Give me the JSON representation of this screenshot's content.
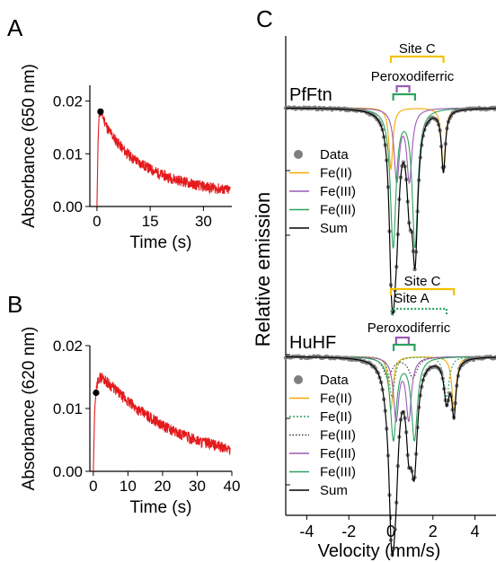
{
  "colors": {
    "trace": "#e41a1c",
    "feII": "#f2a900",
    "feIII_purple": "#9b59b6",
    "feIII_green": "#2ca25f",
    "sum": "#000000",
    "data": "#7f7f7f",
    "bracket_site": "#f2c200"
  },
  "chart_data": [
    {
      "panel": "A",
      "type": "line",
      "xlabel": "Time (s)",
      "ylabel": "Absorbance (650 nm)",
      "xlim": [
        -2,
        38
      ],
      "ylim": [
        0,
        0.023
      ],
      "xticks": [
        0,
        15,
        30
      ],
      "yticks": [
        0.0,
        0.01,
        0.02
      ],
      "ytick_labels": [
        "0.00",
        "0.01",
        "0.02"
      ],
      "marker": {
        "x": 1.0,
        "y": 0.018
      },
      "series": [
        {
          "x": [
            0,
            0.3,
            0.6,
            1,
            2,
            3,
            5,
            8,
            10,
            12,
            15,
            18,
            20,
            22,
            25,
            28,
            30,
            33,
            36,
            37.5
          ],
          "y": [
            0.0,
            0.012,
            0.0175,
            0.018,
            0.0165,
            0.0148,
            0.0128,
            0.0104,
            0.0092,
            0.0083,
            0.0071,
            0.0061,
            0.0056,
            0.0052,
            0.0046,
            0.0041,
            0.0038,
            0.0035,
            0.0032,
            0.0031
          ]
        }
      ]
    },
    {
      "panel": "B",
      "type": "line",
      "xlabel": "Time (s)",
      "ylabel": "Absorbance (620 nm)",
      "xlim": [
        -1,
        40
      ],
      "ylim": [
        0,
        0.02
      ],
      "xticks": [
        0,
        10,
        20,
        30,
        40
      ],
      "yticks": [
        0.0,
        0.01,
        0.02
      ],
      "ytick_labels": [
        "0.00",
        "0.01",
        "0.02"
      ],
      "marker": {
        "x": 0.8,
        "y": 0.0125
      },
      "series": [
        {
          "x": [
            0,
            0.4,
            0.8,
            1.5,
            2.5,
            4,
            6,
            8,
            10,
            13,
            16,
            20,
            24,
            28,
            32,
            36,
            39.5
          ],
          "y": [
            0.0,
            0.01,
            0.0125,
            0.0148,
            0.015,
            0.0142,
            0.0132,
            0.0121,
            0.0111,
            0.0098,
            0.0087,
            0.0073,
            0.0062,
            0.0053,
            0.0046,
            0.004,
            0.0035
          ]
        }
      ]
    },
    {
      "panel": "C",
      "type": "line",
      "xlabel": "Velocity (mm/s)",
      "ylabel": "Relative emission",
      "xlim": [
        -5,
        5
      ],
      "xticks": [
        -4,
        -2,
        0,
        2,
        4
      ],
      "spectra": [
        {
          "sample": "PfFtn",
          "brackets": [
            {
              "label": "Site C",
              "center": 1.25,
              "split": 2.5,
              "color": "#f2c200",
              "style": "solid"
            },
            {
              "label": "Peroxodiferric",
              "center": 0.63,
              "split": 1.04,
              "color": "#2ca25f",
              "style": "solid"
            },
            {
              "label": "",
              "center": 0.58,
              "split": 0.6,
              "color": "#9b59b6",
              "style": "solid"
            }
          ],
          "legend": [
            "Data",
            "Fe(II)",
            "Fe(III)",
            "Fe(III)",
            "Sum"
          ],
          "components": [
            {
              "name": "Fe(II)",
              "color": "#f2a900",
              "lines": [
                {
                  "x": 0,
                  "d": 0.26,
                  "w": 0.22
                },
                {
                  "x": 2.5,
                  "d": 0.26,
                  "w": 0.22
                }
              ]
            },
            {
              "name": "Fe(III)",
              "color": "#9b59b6",
              "lines": [
                {
                  "x": 0.28,
                  "d": 0.3,
                  "w": 0.3
                },
                {
                  "x": 0.88,
                  "d": 0.3,
                  "w": 0.3
                }
              ]
            },
            {
              "name": "Fe(III)",
              "color": "#2ca25f",
              "lines": [
                {
                  "x": 0.11,
                  "d": 0.58,
                  "w": 0.32
                },
                {
                  "x": 1.15,
                  "d": 0.58,
                  "w": 0.32
                }
              ]
            }
          ]
        },
        {
          "sample": "HuHF",
          "brackets": [
            {
              "label": "Site C",
              "center": 1.5,
              "split": 3.0,
              "color": "#f2c200",
              "style": "solid"
            },
            {
              "label": "Site A",
              "center": 1.35,
              "split": 2.6,
              "color": "#2ca25f",
              "style": "dotted"
            },
            {
              "label": "Peroxodiferric",
              "center": 0.63,
              "split": 1.0,
              "color": "#2ca25f",
              "style": "solid"
            },
            {
              "label": "",
              "center": 0.55,
              "split": 0.6,
              "color": "#9b59b6",
              "style": "solid"
            }
          ],
          "legend": [
            "Data",
            "Fe(II)",
            "Fe(II)",
            "Fe(III)",
            "Fe(III)",
            "Fe(III)",
            "Sum"
          ],
          "components": [
            {
              "name": "Fe(II)",
              "color": "#f2a900",
              "lines": [
                {
                  "x": 0,
                  "d": 0.26,
                  "w": 0.24
                },
                {
                  "x": 3.0,
                  "d": 0.26,
                  "w": 0.24
                }
              ]
            },
            {
              "name": "Fe(II)",
              "color": "#2ca25f",
              "dash": "2,2",
              "lines": [
                {
                  "x": 0.05,
                  "d": 0.2,
                  "w": 0.3
                },
                {
                  "x": 2.65,
                  "d": 0.2,
                  "w": 0.3
                }
              ]
            },
            {
              "name": "Fe(III)",
              "color": "#333333",
              "dash": "1.5,2",
              "lines": [
                {
                  "x": -0.15,
                  "d": 0.1,
                  "w": 0.5
                },
                {
                  "x": 1.05,
                  "d": 0.1,
                  "w": 0.5
                }
              ]
            },
            {
              "name": "Fe(III)",
              "color": "#9b59b6",
              "lines": [
                {
                  "x": 0.25,
                  "d": 0.3,
                  "w": 0.3
                },
                {
                  "x": 0.85,
                  "d": 0.3,
                  "w": 0.3
                }
              ]
            },
            {
              "name": "Fe(III)",
              "color": "#2ca25f",
              "lines": [
                {
                  "x": 0.12,
                  "d": 0.4,
                  "w": 0.34
                },
                {
                  "x": 1.12,
                  "d": 0.4,
                  "w": 0.34
                }
              ]
            }
          ]
        }
      ]
    }
  ],
  "labels": {
    "A": "A",
    "B": "B",
    "C": "C"
  }
}
